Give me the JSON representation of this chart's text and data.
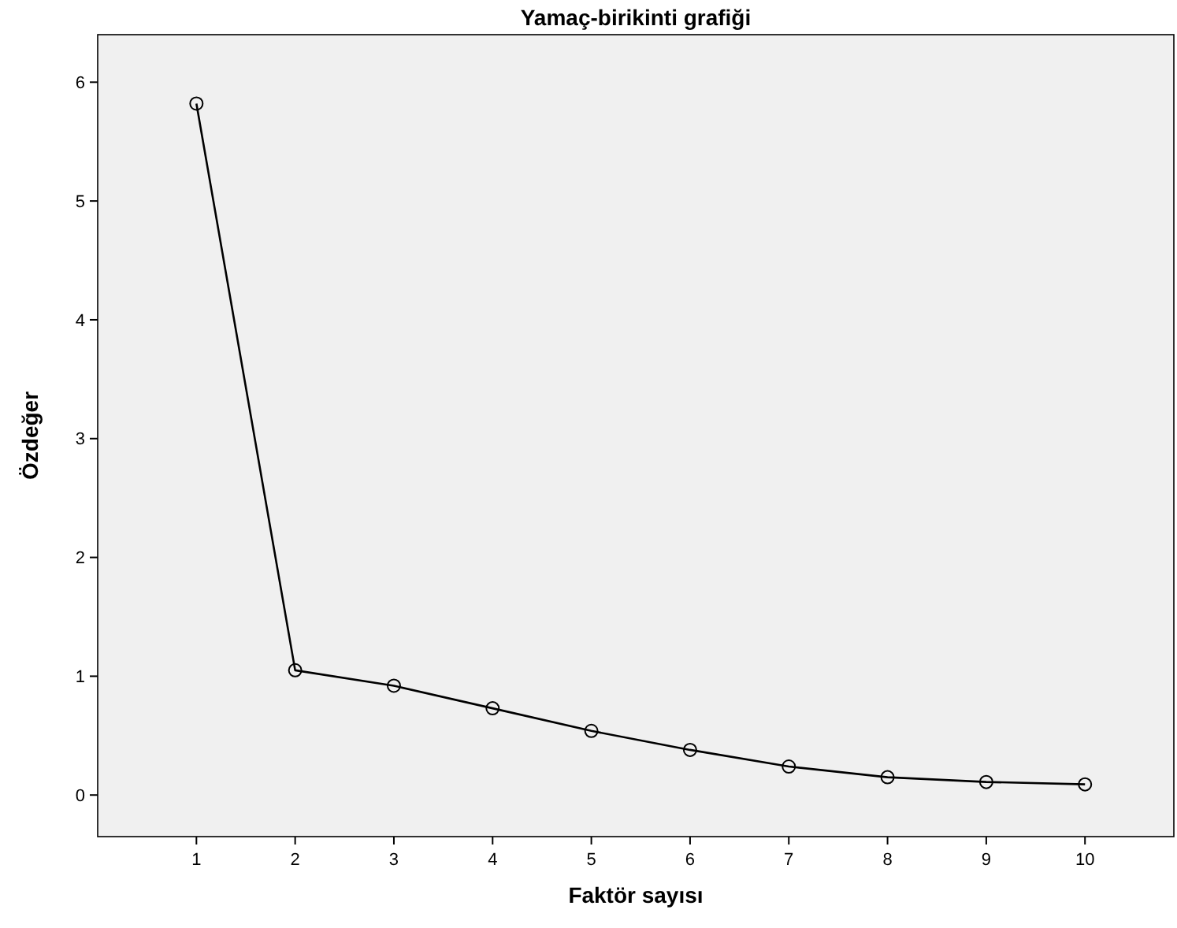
{
  "chart_data": {
    "type": "line",
    "title": "Yamaç-birikinti grafiği",
    "xlabel": "Faktör sayısı",
    "ylabel": "Özdeğer",
    "x": [
      1,
      2,
      3,
      4,
      5,
      6,
      7,
      8,
      9,
      10
    ],
    "series": [
      {
        "color": "#000000",
        "values": [
          5.82,
          1.05,
          0.92,
          0.73,
          0.54,
          0.38,
          0.24,
          0.15,
          0.11,
          0.09
        ]
      }
    ],
    "xlim": [
      0,
      10.9
    ],
    "xticks": [
      1,
      2,
      3,
      4,
      5,
      6,
      7,
      8,
      9,
      10
    ],
    "ylim": [
      -0.35,
      6.4
    ],
    "yticks": [
      0,
      1,
      2,
      3,
      4,
      5,
      6
    ],
    "grid": false,
    "marker": "circle",
    "line_style": "solid"
  }
}
